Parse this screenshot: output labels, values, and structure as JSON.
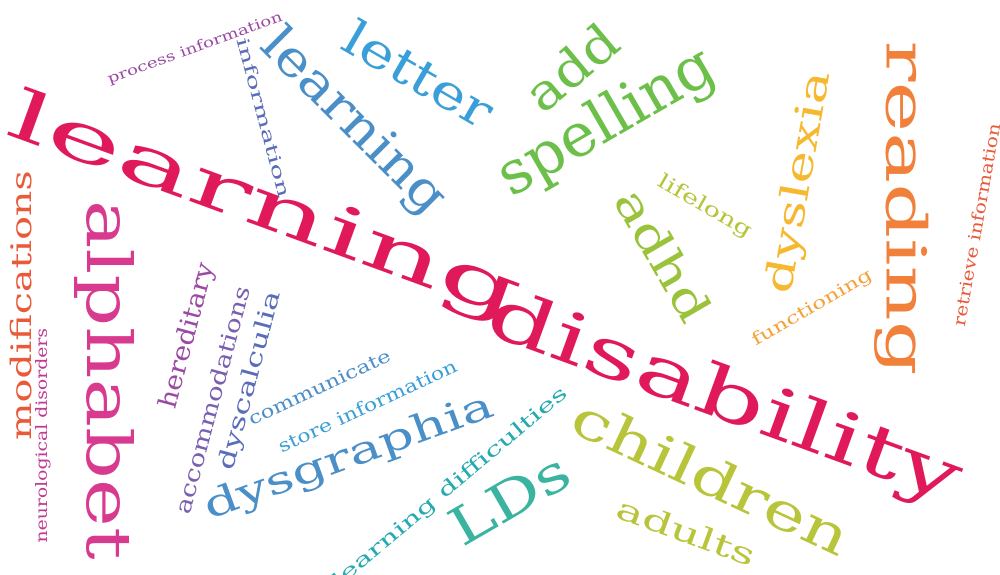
{
  "colors": {
    "background": "#ffffff",
    "crimson": "#e0195a",
    "pink": "#d83a8f",
    "magenta": "#c03a93",
    "purple": "#9a4aa3",
    "violet": "#7a5fb0",
    "indigo": "#5a6db8",
    "steel_blue": "#4a8fc8",
    "sky_blue": "#3a9fd8",
    "teal": "#25aab0",
    "sea_green": "#3ab3a0",
    "green": "#6cc04a",
    "lime": "#9ac23a",
    "olive": "#b8c43a",
    "gold": "#f5b82e",
    "amber": "#f4a23a",
    "orange": "#f0803a",
    "red_orange": "#e85a3a"
  },
  "words": [
    {
      "key": "learning_big",
      "text": "learning",
      "color": "crimson"
    },
    {
      "key": "disability",
      "text": "disability",
      "color": "crimson"
    },
    {
      "key": "alphabet",
      "text": "alphabet",
      "color": "pink"
    },
    {
      "key": "modifications",
      "text": "modifications",
      "color": "red_orange"
    },
    {
      "key": "neurological_disorders",
      "text": "neurological disorders",
      "color": "magenta"
    },
    {
      "key": "process_information",
      "text": "process information",
      "color": "purple"
    },
    {
      "key": "information",
      "text": "information",
      "color": "indigo"
    },
    {
      "key": "learning_blue",
      "text": "learning",
      "color": "steel_blue"
    },
    {
      "key": "letter",
      "text": "letter",
      "color": "sky_blue"
    },
    {
      "key": "add",
      "text": "add",
      "color": "green"
    },
    {
      "key": "spelling",
      "text": "spelling",
      "color": "green"
    },
    {
      "key": "adhd",
      "text": "adhd",
      "color": "lime"
    },
    {
      "key": "lifelong",
      "text": "lifelong",
      "color": "olive"
    },
    {
      "key": "dyslexia",
      "text": "dyslexia",
      "color": "gold"
    },
    {
      "key": "reading",
      "text": "reading",
      "color": "orange"
    },
    {
      "key": "retrieve_information",
      "text": "retrieve information",
      "color": "red_orange"
    },
    {
      "key": "functioning",
      "text": "functioning",
      "color": "amber"
    },
    {
      "key": "hereditary",
      "text": "hereditary",
      "color": "purple"
    },
    {
      "key": "accommodations",
      "text": "accommodations",
      "color": "violet"
    },
    {
      "key": "dyscalculia",
      "text": "dyscalculia",
      "color": "indigo"
    },
    {
      "key": "communicate",
      "text": "communicate",
      "color": "steel_blue"
    },
    {
      "key": "store_information",
      "text": "store information",
      "color": "sky_blue"
    },
    {
      "key": "dysgraphia",
      "text": "dysgraphia",
      "color": "steel_blue"
    },
    {
      "key": "learning_difficulties",
      "text": "learning difficulties",
      "color": "teal"
    },
    {
      "key": "lds",
      "text": "LDs",
      "color": "sea_green"
    },
    {
      "key": "children",
      "text": "children",
      "color": "olive"
    },
    {
      "key": "adults",
      "text": "adults",
      "color": "olive"
    }
  ]
}
